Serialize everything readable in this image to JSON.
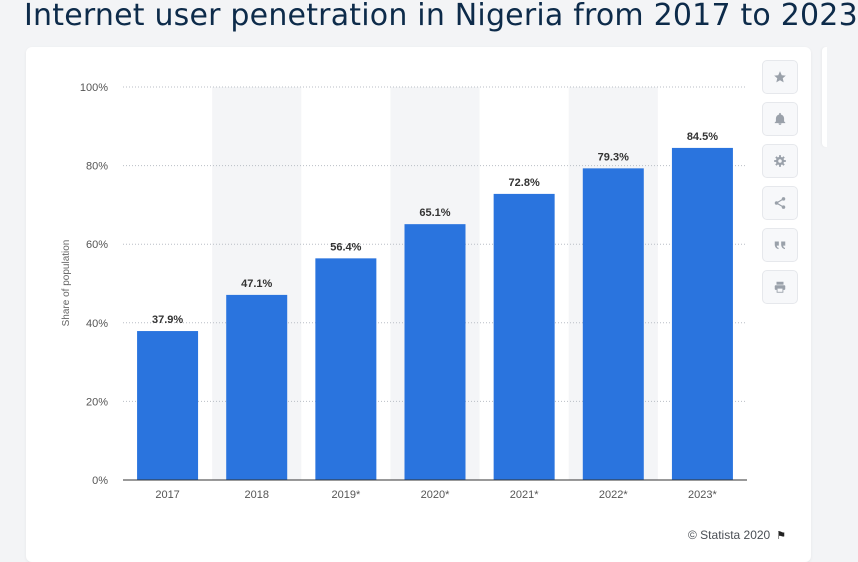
{
  "title": "Internet user penetration in Nigeria from 2017 to 2023",
  "toolbar": {
    "icons": [
      "star-icon",
      "bell-icon",
      "gear-icon",
      "share-icon",
      "quote-icon",
      "print-icon"
    ]
  },
  "footer": {
    "credit": "© Statista 2020"
  },
  "chart_data": {
    "type": "bar",
    "categories": [
      "2017",
      "2018",
      "2019*",
      "2020*",
      "2021*",
      "2022*",
      "2023*"
    ],
    "values": [
      37.9,
      47.1,
      56.4,
      65.1,
      72.8,
      79.3,
      84.5
    ],
    "data_labels": [
      "37.9%",
      "47.1%",
      "56.4%",
      "65.1%",
      "72.8%",
      "79.3%",
      "84.5%"
    ],
    "title": "",
    "xlabel": "",
    "ylabel": "Share of population",
    "ylim": [
      0,
      100
    ],
    "yticks": [
      0,
      20,
      40,
      60,
      80,
      100
    ],
    "ytick_labels": [
      "0%",
      "20%",
      "40%",
      "60%",
      "80%",
      "100%"
    ],
    "grid": true,
    "bar_color": "#2a74de",
    "band_color": "#f4f5f7",
    "label_color": "#333333"
  }
}
